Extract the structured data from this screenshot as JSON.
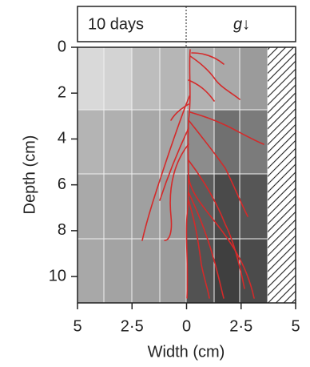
{
  "chart_data": {
    "type": "root-map",
    "header_left": "10 days",
    "header_right": "g↓",
    "y_label": "Depth (cm)",
    "x_label": "Width (cm)",
    "xlim": [
      -5,
      5
    ],
    "ylim": [
      0,
      11.15
    ],
    "xticks": [
      {
        "value": -5,
        "label": "5"
      },
      {
        "value": -2.5,
        "label": "2·5"
      },
      0,
      {
        "value": 2.5,
        "label": "2·5"
      },
      5
    ],
    "yticks": [
      0,
      2,
      4,
      6,
      8,
      10
    ]
  }
}
